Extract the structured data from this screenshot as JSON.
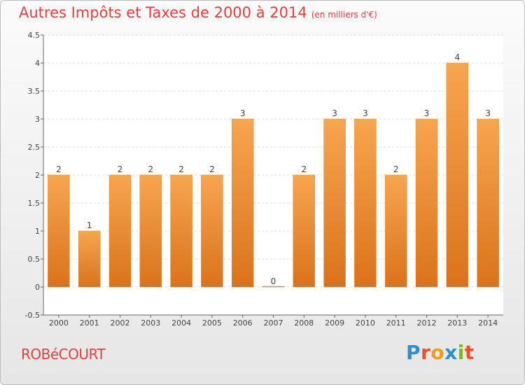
{
  "header": {
    "title": "Autres Impôts et Taxes de 2000 à 2014",
    "unit": "(en milliers d'€)"
  },
  "footer": {
    "place": "ROBéCOURT",
    "logo": [
      "P",
      "r",
      "o",
      "x",
      "i",
      "t",
      "i"
    ]
  },
  "colors": {
    "bar_top": "#f7a54f",
    "bar_bottom": "#d9731b",
    "title": "#e0413f",
    "grid": "#dddddd"
  },
  "chart_data": {
    "type": "bar",
    "title": "Autres Impôts et Taxes de 2000 à 2014",
    "categories": [
      "2000",
      "2001",
      "2002",
      "2003",
      "2004",
      "2005",
      "2006",
      "2007",
      "2008",
      "2009",
      "2010",
      "2011",
      "2012",
      "2013",
      "2014"
    ],
    "values": [
      2,
      1,
      2,
      2,
      2,
      2,
      3,
      0,
      2,
      3,
      3,
      2,
      3,
      4,
      3
    ],
    "data_labels": [
      "2",
      "1",
      "2",
      "2",
      "2",
      "2",
      "3",
      "0",
      "2",
      "3",
      "3",
      "2",
      "3",
      "4",
      "3"
    ],
    "ylim": [
      -0.5,
      4.5
    ],
    "yticks": [
      -0.5,
      0,
      0.5,
      1,
      1.5,
      2,
      2.5,
      3,
      3.5,
      4,
      4.5
    ],
    "ytick_labels": [
      "-0.5",
      "0",
      "0.5",
      "1",
      "1.5",
      "2",
      "2.5",
      "3",
      "3.5",
      "4",
      "4.5"
    ],
    "grid": true
  }
}
